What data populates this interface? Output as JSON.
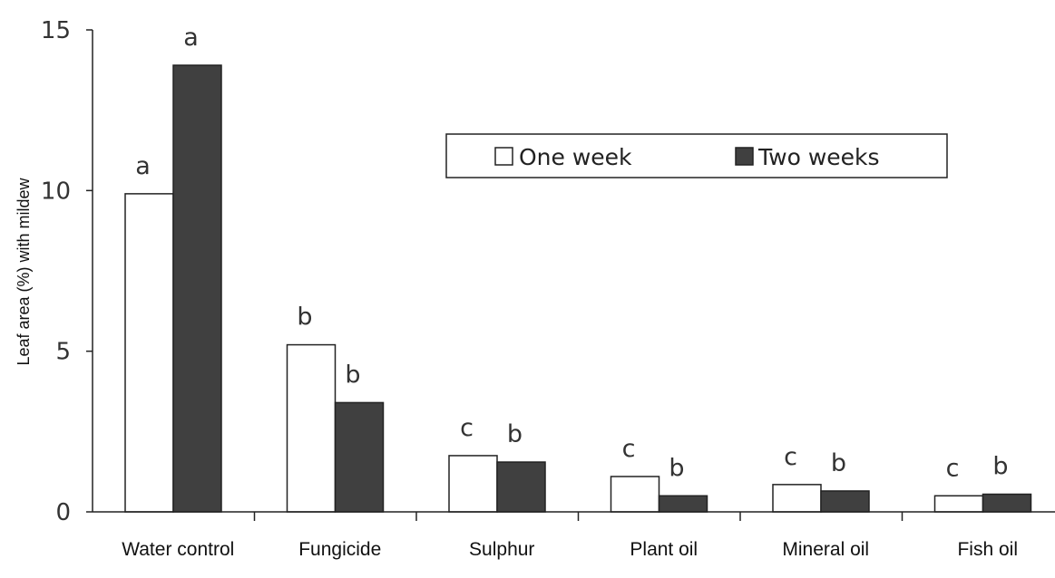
{
  "chart_data": {
    "type": "bar",
    "title": "",
    "xlabel": "",
    "ylabel": "Leaf area (%) with mildew",
    "ylim": [
      0,
      15
    ],
    "yticks": [
      0,
      5,
      10,
      15
    ],
    "grid": false,
    "legend_position": "top-right",
    "categories": [
      "Water control",
      "Fungicide",
      "Sulphur",
      "Plant oil",
      "Mineral oil",
      "Fish oil"
    ],
    "series": [
      {
        "name": "One week",
        "color": "#ffffff",
        "values": [
          9.9,
          5.2,
          1.75,
          1.1,
          0.85,
          0.5
        ],
        "letters": [
          "a",
          "b",
          "c",
          "c",
          "c",
          "c"
        ]
      },
      {
        "name": "Two weeks",
        "color": "#404040",
        "values": [
          13.9,
          3.4,
          1.55,
          0.5,
          0.65,
          0.55
        ],
        "letters": [
          "a",
          "b",
          "b",
          "b",
          "b",
          "b"
        ]
      }
    ]
  }
}
